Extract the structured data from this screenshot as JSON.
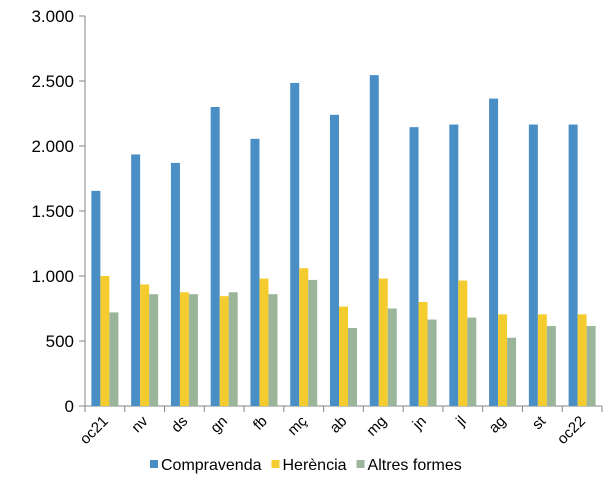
{
  "chart_data": {
    "type": "bar",
    "categories": [
      "oc21",
      "nv",
      "ds",
      "gn",
      "fb",
      "mç",
      "ab",
      "mg",
      "jn",
      "jl",
      "ag",
      "st",
      "oc22"
    ],
    "series": [
      {
        "name": "Compravenda",
        "color": "#4a8ec6",
        "values": [
          1655,
          1935,
          1870,
          2300,
          2055,
          2485,
          2240,
          2545,
          2145,
          2165,
          2365,
          2165,
          2165
        ]
      },
      {
        "name": "Herència",
        "color": "#f5cc2e",
        "values": [
          1000,
          935,
          875,
          845,
          980,
          1060,
          765,
          980,
          800,
          965,
          705,
          705,
          705
        ]
      },
      {
        "name": "Altres formes",
        "color": "#9bb59a",
        "values": [
          720,
          860,
          860,
          875,
          860,
          970,
          600,
          750,
          665,
          680,
          525,
          615,
          615
        ]
      }
    ],
    "ylim": [
      0,
      3000
    ],
    "yticks": [
      0,
      500,
      1000,
      1500,
      2000,
      2500,
      3000
    ],
    "ytick_labels": [
      "0",
      "500",
      "1.000",
      "1.500",
      "2.000",
      "2.500",
      "3.000"
    ],
    "grid": false,
    "legend_position": "bottom"
  }
}
